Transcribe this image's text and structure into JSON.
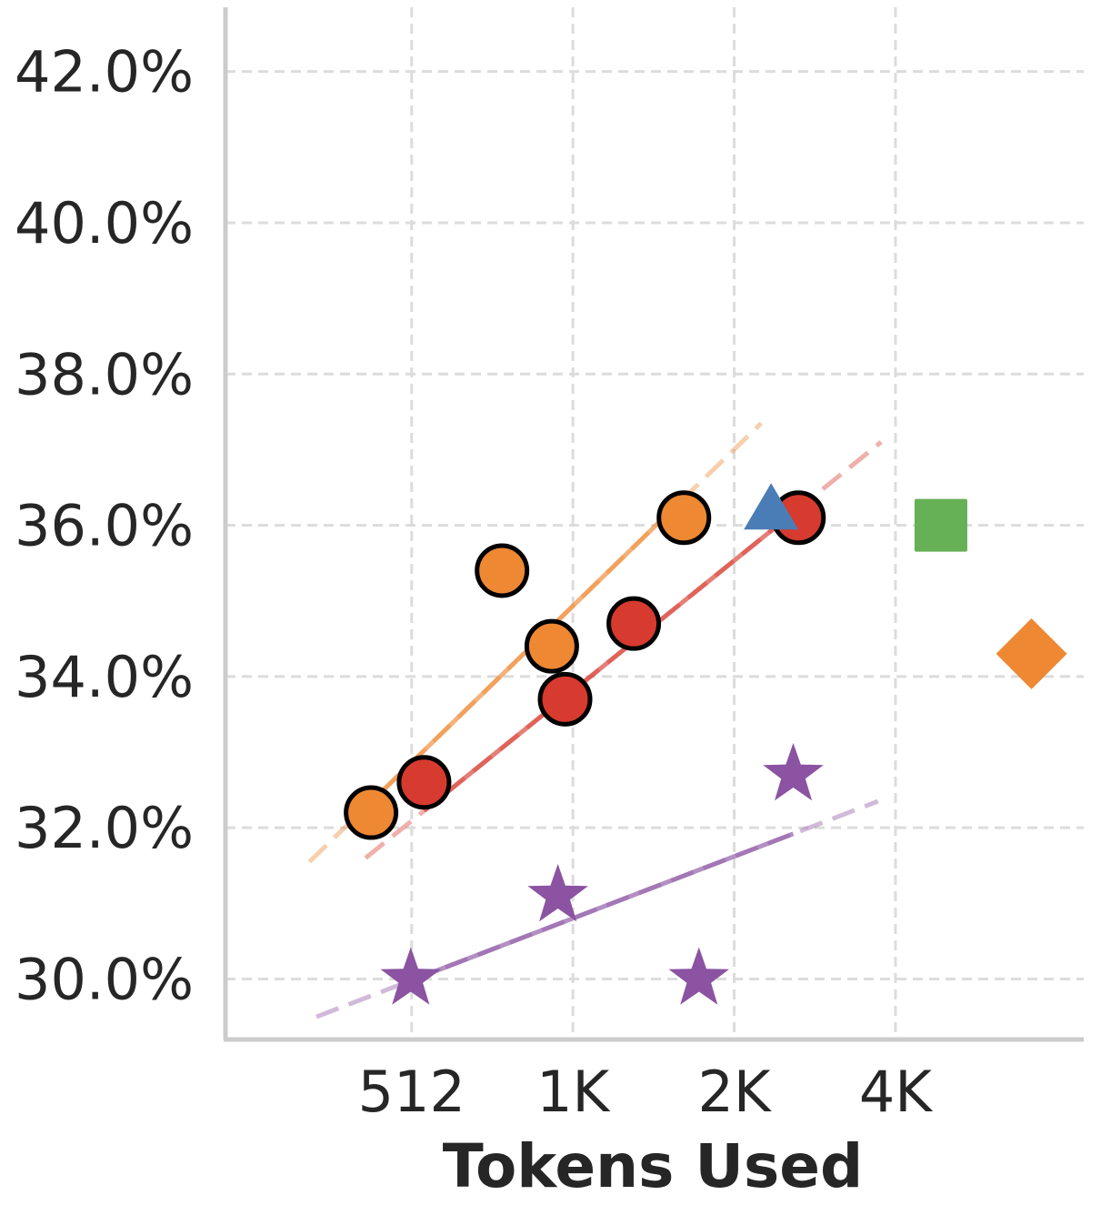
{
  "chart_data": {
    "type": "scatter",
    "title": "",
    "xlabel": "Tokens Used",
    "ylabel": "",
    "x_scale": "log2",
    "xlim": [
      230,
      9200
    ],
    "ylim": [
      29.2,
      42.85
    ],
    "x_ticks": [
      {
        "value": 512,
        "label": "512"
      },
      {
        "value": 1024,
        "label": "1K"
      },
      {
        "value": 2048,
        "label": "2K"
      },
      {
        "value": 4096,
        "label": "4K"
      }
    ],
    "y_ticks": [
      {
        "value": 30,
        "label": "30.0%"
      },
      {
        "value": 32,
        "label": "32.0%"
      },
      {
        "value": 34,
        "label": "34.0%"
      },
      {
        "value": 36,
        "label": "36.0%"
      },
      {
        "value": 38,
        "label": "38.0%"
      },
      {
        "value": 40,
        "label": "40.0%"
      },
      {
        "value": 42,
        "label": "42.0%"
      }
    ],
    "grid": true,
    "legend": "none",
    "series": [
      {
        "color": "#ee8833",
        "marker": "circle",
        "points": [
          {
            "x": 430,
            "y": 32.2
          },
          {
            "x": 755,
            "y": 35.4
          },
          {
            "x": 935,
            "y": 34.4
          },
          {
            "x": 1650,
            "y": 36.1
          }
        ],
        "trend": {
          "x": [
            330,
            2300
          ],
          "y": [
            31.55,
            37.35
          ]
        }
      },
      {
        "color": "#d73a2e",
        "marker": "circle",
        "points": [
          {
            "x": 540,
            "y": 32.6
          },
          {
            "x": 990,
            "y": 33.7
          },
          {
            "x": 1330,
            "y": 34.7
          },
          {
            "x": 2700,
            "y": 36.1
          }
        ],
        "trend": {
          "x": [
            420,
            3850
          ],
          "y": [
            31.6,
            37.1
          ]
        }
      },
      {
        "color": "#8b53a1",
        "marker": "star",
        "points": [
          {
            "x": 510,
            "y": 30.0
          },
          {
            "x": 960,
            "y": 31.1
          },
          {
            "x": 1760,
            "y": 30.0
          },
          {
            "x": 2640,
            "y": 32.7
          }
        ],
        "trend": {
          "x": [
            340,
            3800
          ],
          "y": [
            29.5,
            32.35
          ]
        }
      },
      {
        "color": "#4a7db5",
        "marker": "triangle",
        "points": [
          {
            "x": 2400,
            "y": 36.1
          }
        ]
      },
      {
        "color": "#66b055",
        "marker": "square",
        "points": [
          {
            "x": 4980,
            "y": 36.0
          }
        ]
      },
      {
        "color": "#ee8833",
        "marker": "diamond",
        "points": [
          {
            "x": 7350,
            "y": 34.3
          }
        ]
      }
    ]
  }
}
